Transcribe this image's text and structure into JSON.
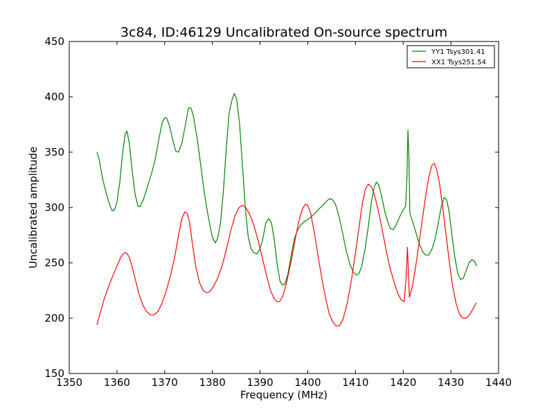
{
  "chart_data": {
    "type": "line",
    "title": "3c84, ID:46129 Uncalibrated On-source spectrum",
    "xlabel": "Frequency (MHz)",
    "ylabel": "Uncalibrated amplitude",
    "xlim": [
      1350,
      1440
    ],
    "ylim": [
      150,
      450
    ],
    "xticks": [
      1350,
      1360,
      1370,
      1380,
      1390,
      1400,
      1410,
      1420,
      1430,
      1440
    ],
    "yticks": [
      150,
      200,
      250,
      300,
      350,
      400,
      450
    ],
    "legend_position": "top-right",
    "grid": false,
    "series": [
      {
        "name": "YY1 Tsys301.41",
        "color": "#008000",
        "points": [
          [
            1355.8,
            350
          ],
          [
            1356.3,
            343
          ],
          [
            1357,
            326
          ],
          [
            1357.8,
            312
          ],
          [
            1358.5,
            302
          ],
          [
            1359,
            297
          ],
          [
            1359.5,
            298
          ],
          [
            1360,
            305
          ],
          [
            1360.6,
            323
          ],
          [
            1361.2,
            350
          ],
          [
            1361.7,
            366
          ],
          [
            1362.1,
            369
          ],
          [
            1362.6,
            358
          ],
          [
            1363.2,
            333
          ],
          [
            1363.8,
            312
          ],
          [
            1364.4,
            301
          ],
          [
            1364.9,
            301
          ],
          [
            1365.6,
            308
          ],
          [
            1366.4,
            319
          ],
          [
            1367.2,
            330
          ],
          [
            1368,
            343
          ],
          [
            1368.8,
            362
          ],
          [
            1369.5,
            377
          ],
          [
            1370,
            381
          ],
          [
            1370.4,
            381
          ],
          [
            1371,
            374
          ],
          [
            1371.7,
            361
          ],
          [
            1372.3,
            351
          ],
          [
            1372.9,
            350
          ],
          [
            1373.6,
            358
          ],
          [
            1374.4,
            376
          ],
          [
            1375,
            390
          ],
          [
            1375.5,
            390
          ],
          [
            1376,
            383
          ],
          [
            1376.8,
            363
          ],
          [
            1377.6,
            337
          ],
          [
            1378.4,
            311
          ],
          [
            1379.2,
            290
          ],
          [
            1380,
            273
          ],
          [
            1380.6,
            268
          ],
          [
            1381.1,
            272
          ],
          [
            1381.7,
            286
          ],
          [
            1382.3,
            314
          ],
          [
            1382.9,
            352
          ],
          [
            1383.5,
            385
          ],
          [
            1384.1,
            397
          ],
          [
            1384.6,
            403
          ],
          [
            1385.1,
            398
          ],
          [
            1385.7,
            376
          ],
          [
            1386.3,
            338
          ],
          [
            1386.9,
            300
          ],
          [
            1387.5,
            274
          ],
          [
            1388.1,
            263
          ],
          [
            1388.7,
            259
          ],
          [
            1389.3,
            258
          ],
          [
            1389.9,
            262
          ],
          [
            1390.5,
            270
          ],
          [
            1391.2,
            286
          ],
          [
            1391.8,
            290
          ],
          [
            1392.4,
            286
          ],
          [
            1393,
            270
          ],
          [
            1393.6,
            248
          ],
          [
            1394.2,
            233
          ],
          [
            1394.7,
            230
          ],
          [
            1395.2,
            231
          ],
          [
            1395.8,
            239
          ],
          [
            1396.5,
            256
          ],
          [
            1397.2,
            272
          ],
          [
            1397.8,
            279
          ],
          [
            1398.5,
            284
          ],
          [
            1399.2,
            287
          ],
          [
            1400,
            289
          ],
          [
            1400.8,
            292
          ],
          [
            1401.6,
            295
          ],
          [
            1402.4,
            299
          ],
          [
            1403.2,
            302
          ],
          [
            1404,
            306
          ],
          [
            1404.6,
            308
          ],
          [
            1405.2,
            307
          ],
          [
            1405.8,
            303
          ],
          [
            1406.5,
            293
          ],
          [
            1407.2,
            279
          ],
          [
            1408,
            262
          ],
          [
            1408.8,
            249
          ],
          [
            1409.5,
            242
          ],
          [
            1410.1,
            239
          ],
          [
            1410.7,
            240
          ],
          [
            1411.3,
            247
          ],
          [
            1412,
            262
          ],
          [
            1412.7,
            283
          ],
          [
            1413.3,
            304
          ],
          [
            1413.9,
            318
          ],
          [
            1414.4,
            323
          ],
          [
            1414.9,
            320
          ],
          [
            1415.5,
            310
          ],
          [
            1416.1,
            297
          ],
          [
            1416.7,
            288
          ],
          [
            1417.3,
            281
          ],
          [
            1417.9,
            280
          ],
          [
            1418.5,
            284
          ],
          [
            1419.2,
            291
          ],
          [
            1420,
            298
          ],
          [
            1420.5,
            301
          ],
          [
            1420.8,
            328
          ],
          [
            1421,
            370
          ],
          [
            1421.2,
            345
          ],
          [
            1421.4,
            295
          ],
          [
            1422,
            287
          ],
          [
            1422.7,
            277
          ],
          [
            1423.4,
            267
          ],
          [
            1424.1,
            260
          ],
          [
            1424.7,
            257
          ],
          [
            1425.3,
            257
          ],
          [
            1425.9,
            261
          ],
          [
            1426.6,
            270
          ],
          [
            1427.3,
            285
          ],
          [
            1428,
            301
          ],
          [
            1428.6,
            309
          ],
          [
            1429.1,
            307
          ],
          [
            1429.6,
            297
          ],
          [
            1430.2,
            276
          ],
          [
            1430.8,
            256
          ],
          [
            1431.4,
            241
          ],
          [
            1432,
            235
          ],
          [
            1432.6,
            236
          ],
          [
            1433.2,
            243
          ],
          [
            1433.8,
            250
          ],
          [
            1434.4,
            253
          ],
          [
            1435,
            251
          ],
          [
            1435.4,
            247
          ]
        ]
      },
      {
        "name": "XX1 Tsys251.54",
        "color": "#ff0000",
        "points": [
          [
            1355.8,
            194
          ],
          [
            1356.5,
            205
          ],
          [
            1357.3,
            217
          ],
          [
            1358.2,
            228
          ],
          [
            1359.1,
            238
          ],
          [
            1360,
            247
          ],
          [
            1360.8,
            255
          ],
          [
            1361.5,
            259
          ],
          [
            1362,
            259
          ],
          [
            1362.6,
            255
          ],
          [
            1363.2,
            246
          ],
          [
            1363.9,
            234
          ],
          [
            1364.6,
            222
          ],
          [
            1365.4,
            212
          ],
          [
            1366.2,
            206
          ],
          [
            1367,
            203
          ],
          [
            1367.8,
            203
          ],
          [
            1368.6,
            206
          ],
          [
            1369.4,
            213
          ],
          [
            1370.3,
            224
          ],
          [
            1371.2,
            238
          ],
          [
            1372.1,
            255
          ],
          [
            1372.9,
            275
          ],
          [
            1373.6,
            290
          ],
          [
            1374.2,
            296
          ],
          [
            1374.7,
            295
          ],
          [
            1375.2,
            287
          ],
          [
            1375.8,
            268
          ],
          [
            1376.5,
            247
          ],
          [
            1377.3,
            232
          ],
          [
            1378.1,
            225
          ],
          [
            1378.8,
            223
          ],
          [
            1379.5,
            224
          ],
          [
            1380.3,
            229
          ],
          [
            1381.2,
            237
          ],
          [
            1382.1,
            248
          ],
          [
            1383,
            263
          ],
          [
            1383.9,
            280
          ],
          [
            1384.8,
            293
          ],
          [
            1385.6,
            300
          ],
          [
            1386.3,
            302
          ],
          [
            1387,
            300
          ],
          [
            1387.8,
            294
          ],
          [
            1388.7,
            284
          ],
          [
            1389.6,
            270
          ],
          [
            1390.5,
            254
          ],
          [
            1391.4,
            238
          ],
          [
            1392.2,
            225
          ],
          [
            1392.9,
            218
          ],
          [
            1393.5,
            215
          ],
          [
            1394.1,
            215
          ],
          [
            1394.8,
            220
          ],
          [
            1395.6,
            233
          ],
          [
            1396.5,
            251
          ],
          [
            1397.4,
            272
          ],
          [
            1398.2,
            289
          ],
          [
            1398.9,
            299
          ],
          [
            1399.5,
            303
          ],
          [
            1400,
            302
          ],
          [
            1400.6,
            295
          ],
          [
            1401.3,
            279
          ],
          [
            1402.1,
            258
          ],
          [
            1402.9,
            237
          ],
          [
            1403.7,
            219
          ],
          [
            1404.5,
            204
          ],
          [
            1405.3,
            196
          ],
          [
            1406,
            193
          ],
          [
            1406.6,
            193
          ],
          [
            1407.3,
            198
          ],
          [
            1408.1,
            210
          ],
          [
            1409,
            230
          ],
          [
            1409.9,
            256
          ],
          [
            1410.7,
            281
          ],
          [
            1411.4,
            303
          ],
          [
            1412.1,
            317
          ],
          [
            1412.7,
            321
          ],
          [
            1413.3,
            319
          ],
          [
            1414,
            311
          ],
          [
            1414.8,
            297
          ],
          [
            1415.6,
            280
          ],
          [
            1416.4,
            262
          ],
          [
            1417.2,
            246
          ],
          [
            1418,
            234
          ],
          [
            1418.8,
            223
          ],
          [
            1419.5,
            217
          ],
          [
            1420.2,
            215
          ],
          [
            1420.6,
            236
          ],
          [
            1420.9,
            264
          ],
          [
            1421.1,
            240
          ],
          [
            1421.3,
            219
          ],
          [
            1421.9,
            228
          ],
          [
            1422.6,
            246
          ],
          [
            1423.3,
            267
          ],
          [
            1424,
            289
          ],
          [
            1424.7,
            310
          ],
          [
            1425.4,
            328
          ],
          [
            1426,
            338
          ],
          [
            1426.5,
            340
          ],
          [
            1427,
            335
          ],
          [
            1427.6,
            322
          ],
          [
            1428.3,
            300
          ],
          [
            1429,
            275
          ],
          [
            1429.7,
            250
          ],
          [
            1430.4,
            228
          ],
          [
            1431.1,
            213
          ],
          [
            1431.8,
            204
          ],
          [
            1432.5,
            200
          ],
          [
            1433.2,
            200
          ],
          [
            1433.9,
            203
          ],
          [
            1434.6,
            208
          ],
          [
            1435.3,
            214
          ]
        ]
      }
    ]
  }
}
